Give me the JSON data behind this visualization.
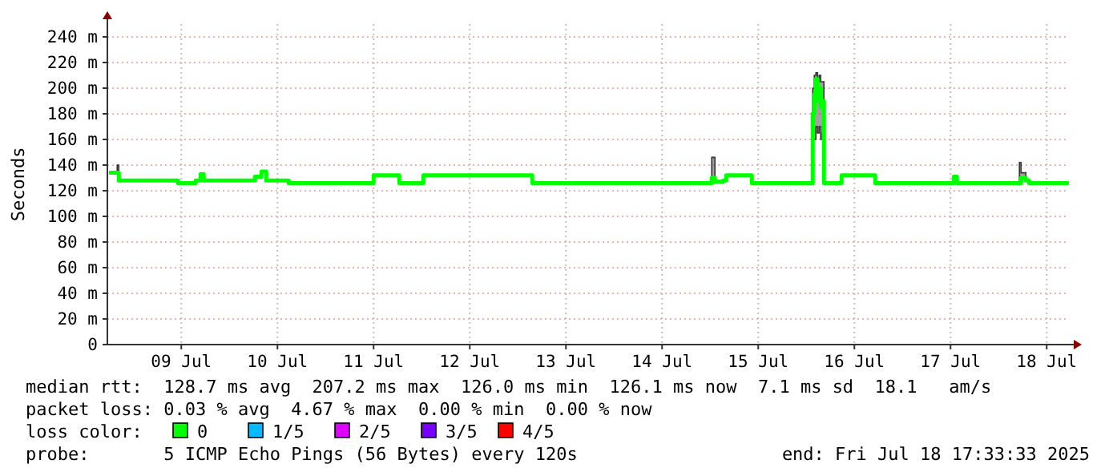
{
  "chart_data": {
    "type": "line",
    "ylabel": "Seconds",
    "x": [
      "2025-07-08T18:00",
      "2025-07-08T20:00",
      "2025-07-08T20:24",
      "2025-07-09T10:48",
      "2025-07-09T11:12",
      "2025-07-09T15:12",
      "2025-07-09T15:36",
      "2025-07-09T16:00",
      "2025-07-09T16:48",
      "2025-07-09T17:36",
      "2025-07-10T05:12",
      "2025-07-10T06:24",
      "2025-07-10T08:00",
      "2025-07-10T09:12",
      "2025-07-10T14:24",
      "2025-07-10T14:48",
      "2025-07-11T11:12",
      "2025-07-11T12:00",
      "2025-07-11T18:00",
      "2025-07-11T18:24",
      "2025-07-12T00:00",
      "2025-07-12T00:24",
      "2025-07-13T03:12",
      "2025-07-13T03:36",
      "2025-07-15T00:00",
      "2025-07-15T00:24",
      "2025-07-15T01:12",
      "2025-07-15T03:12",
      "2025-07-15T04:00",
      "2025-07-15T10:00",
      "2025-07-15T10:24",
      "2025-07-16T00:48",
      "2025-07-16T01:36",
      "2025-07-16T02:00",
      "2025-07-16T02:24",
      "2025-07-16T02:48",
      "2025-07-16T03:12",
      "2025-07-16T03:36",
      "2025-07-16T04:00",
      "2025-07-16T04:24",
      "2025-07-16T08:24",
      "2025-07-16T08:48",
      "2025-07-16T16:48",
      "2025-07-16T17:12",
      "2025-07-17T12:00",
      "2025-07-17T12:48",
      "2025-07-17T13:36",
      "2025-07-18T05:12",
      "2025-07-18T05:36",
      "2025-07-18T06:48",
      "2025-07-18T07:36",
      "2025-07-18T17:30"
    ],
    "series": [
      {
        "name": "0",
        "color": "#00ff00",
        "values": [
          134,
          134,
          128,
          128,
          126,
          126,
          128,
          128,
          133,
          128,
          128,
          131,
          135,
          128,
          128,
          126,
          126,
          132,
          132,
          126,
          126,
          132,
          132,
          126,
          126,
          130,
          127,
          128,
          132,
          132,
          126,
          126,
          180,
          195,
          207,
          190,
          200,
          185,
          190,
          126,
          126,
          132,
          132,
          126,
          126,
          131,
          126,
          126,
          130,
          128,
          126,
          126
        ],
        "lower": [
          134,
          134,
          128,
          128,
          126,
          126,
          128,
          128,
          133,
          128,
          128,
          131,
          135,
          128,
          128,
          126,
          126,
          132,
          132,
          126,
          126,
          132,
          132,
          126,
          126,
          128,
          127,
          128,
          132,
          132,
          126,
          126,
          160,
          160,
          170,
          165,
          170,
          160,
          165,
          126,
          126,
          132,
          132,
          126,
          126,
          131,
          126,
          126,
          130,
          128,
          126,
          126
        ],
        "upper": [
          134,
          140,
          128,
          128,
          126,
          126,
          128,
          128,
          133,
          128,
          128,
          131,
          135,
          128,
          128,
          126,
          126,
          132,
          132,
          126,
          126,
          132,
          132,
          126,
          126,
          146,
          127,
          128,
          132,
          132,
          126,
          126,
          200,
          210,
          212,
          205,
          210,
          205,
          205,
          126,
          126,
          132,
          132,
          126,
          126,
          131,
          126,
          142,
          134,
          128,
          126,
          126
        ]
      },
      {
        "name": "1/5",
        "color": "#00bbff",
        "values": [
          null,
          null,
          null,
          null,
          null,
          null,
          null,
          null,
          null,
          null,
          null,
          null,
          null,
          null,
          null,
          null,
          null,
          null,
          null,
          null,
          null,
          null,
          null,
          null,
          null,
          null,
          null,
          null,
          null,
          null,
          null,
          null,
          null,
          null,
          null,
          null,
          null,
          null,
          null,
          null,
          null,
          null,
          null,
          null,
          null,
          null,
          null,
          null,
          null,
          null,
          null,
          null
        ]
      },
      {
        "name": "2/5",
        "color": "#dd00ff",
        "values": [
          null,
          null,
          null,
          null,
          null,
          null,
          null,
          null,
          null,
          null,
          null,
          null,
          null,
          null,
          null,
          null,
          null,
          null,
          null,
          null,
          null,
          null,
          null,
          null,
          null,
          null,
          null,
          null,
          null,
          null,
          null,
          null,
          null,
          null,
          null,
          null,
          null,
          null,
          null,
          null,
          null,
          null,
          null,
          null,
          null,
          null,
          null,
          null,
          null,
          null,
          null,
          null
        ]
      },
      {
        "name": "3/5",
        "color": "#7700ff",
        "values": [
          null,
          null,
          null,
          null,
          null,
          null,
          null,
          null,
          null,
          null,
          null,
          null,
          null,
          null,
          null,
          null,
          null,
          null,
          null,
          null,
          null,
          null,
          null,
          null,
          null,
          null,
          null,
          null,
          null,
          null,
          null,
          null,
          null,
          null,
          null,
          null,
          null,
          null,
          null,
          null,
          null,
          null,
          null,
          null,
          null,
          null,
          null,
          null,
          null,
          null,
          null,
          null
        ]
      },
      {
        "name": "4/5",
        "color": "#ff0000",
        "values": [
          null,
          null,
          null,
          null,
          null,
          null,
          null,
          null,
          null,
          null,
          null,
          null,
          null,
          null,
          null,
          null,
          null,
          null,
          null,
          null,
          null,
          null,
          null,
          null,
          null,
          null,
          null,
          null,
          null,
          null,
          null,
          null,
          null,
          null,
          null,
          null,
          null,
          null,
          null,
          null,
          null,
          null,
          null,
          null,
          null,
          null,
          null,
          null,
          null,
          null,
          null,
          null
        ]
      }
    ],
    "xlim": [
      "2025-07-08T17:33",
      "2025-07-18T17:33"
    ],
    "xticks": [
      {
        "value": "2025-07-09T12:00",
        "label": "09 Jul"
      },
      {
        "value": "2025-07-10T12:00",
        "label": "10 Jul"
      },
      {
        "value": "2025-07-11T12:00",
        "label": "11 Jul"
      },
      {
        "value": "2025-07-12T12:00",
        "label": "12 Jul"
      },
      {
        "value": "2025-07-13T12:00",
        "label": "13 Jul"
      },
      {
        "value": "2025-07-14T12:00",
        "label": "14 Jul"
      },
      {
        "value": "2025-07-15T12:00",
        "label": "15 Jul"
      },
      {
        "value": "2025-07-16T12:00",
        "label": "16 Jul"
      },
      {
        "value": "2025-07-17T12:00",
        "label": "17 Jul"
      },
      {
        "value": "2025-07-18T12:00",
        "label": "18 Jul"
      }
    ],
    "ylim": [
      0,
      250
    ],
    "yticks": [
      0,
      {
        "value": 20,
        "label": "20 m"
      },
      {
        "value": 40,
        "label": "40 m"
      },
      {
        "value": 60,
        "label": "60 m"
      },
      {
        "value": 80,
        "label": "80 m"
      },
      {
        "value": 100,
        "label": "100 m"
      },
      {
        "value": 120,
        "label": "120 m"
      },
      {
        "value": 140,
        "label": "140 m"
      },
      {
        "value": 160,
        "label": "160 m"
      },
      {
        "value": 180,
        "label": "180 m"
      },
      {
        "value": 200,
        "label": "200 m"
      },
      {
        "value": 220,
        "label": "220 m"
      },
      {
        "value": 240,
        "label": "240 m"
      }
    ],
    "grid": true,
    "legend": "bottom",
    "legend_title": "loss color:",
    "marker": "none",
    "line_style": "solid",
    "annotations": [
      "median rtt:  128.7 ms avg  207.2 ms max  126.0 ms min  126.1 ms now  7.1 ms sd  18.1   am/s",
      "packet loss: 0.03 % avg  4.67 % max  0.00 % min  0.00 % now",
      "probe:       5 ICMP Echo Pings (56 Bytes) every 120s",
      "end: Fri Jul 18 17:33:33 2025"
    ]
  }
}
